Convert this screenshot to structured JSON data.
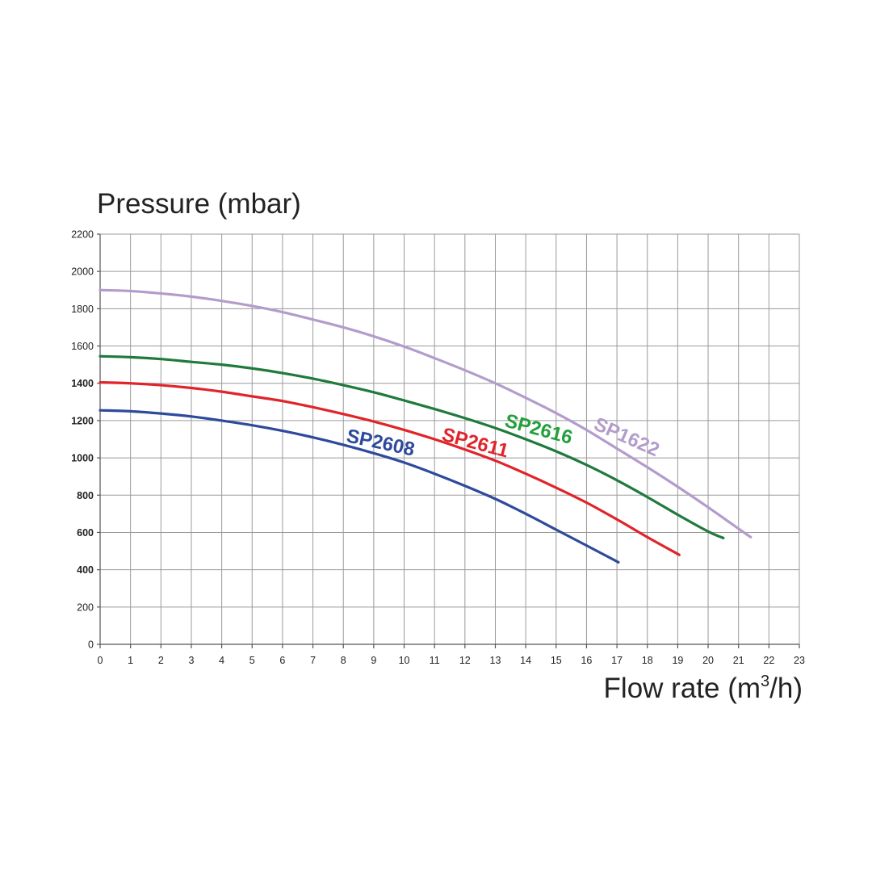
{
  "chart_data": {
    "type": "line",
    "title": "",
    "ylabel": "Pressure (mbar)",
    "xlabel_main": "Flow rate (m",
    "xlabel_sup": "3",
    "xlabel_tail": "/h)",
    "xlim": [
      0,
      23
    ],
    "ylim": [
      0,
      2200
    ],
    "x_ticks": [
      "0",
      "1",
      "2",
      "3",
      "4",
      "5",
      "6",
      "7",
      "8",
      "9",
      "10",
      "11",
      "12",
      "13",
      "14",
      "15",
      "16",
      "17",
      "18",
      "19",
      "20",
      "21",
      "22",
      "23"
    ],
    "y_ticks": [
      "0",
      "200",
      "400",
      "600",
      "800",
      "1000",
      "1200",
      "1400",
      "1600",
      "1800",
      "2000",
      "2200"
    ],
    "y_ticks_bold": [
      "400",
      "600",
      "800",
      "1000",
      "1200",
      "1400"
    ],
    "grid": true,
    "series": [
      {
        "name": "SP2608",
        "color": "#2e4a9c",
        "x": [
          0,
          1,
          2,
          3,
          4,
          5,
          6,
          7,
          8,
          9,
          10,
          11,
          12,
          13,
          14,
          15,
          16,
          17.05
        ],
        "y": [
          1255,
          1250,
          1238,
          1222,
          1200,
          1175,
          1145,
          1110,
          1070,
          1025,
          975,
          915,
          850,
          780,
          700,
          615,
          530,
          440
        ]
      },
      {
        "name": "SP2611",
        "color": "#e0242a",
        "x": [
          0,
          1,
          2,
          3,
          4,
          5,
          6,
          7,
          8,
          9,
          10,
          11,
          12,
          13,
          14,
          15,
          16,
          17,
          18,
          19.05
        ],
        "y": [
          1405,
          1400,
          1390,
          1375,
          1355,
          1330,
          1305,
          1272,
          1235,
          1195,
          1150,
          1100,
          1045,
          985,
          915,
          840,
          760,
          670,
          575,
          480
        ]
      },
      {
        "name": "SP2616",
        "color": "#1f7a3c",
        "x": [
          0,
          1,
          2,
          3,
          4,
          5,
          6,
          7,
          8,
          9,
          10,
          11,
          12,
          13,
          14,
          15,
          16,
          17,
          18,
          19,
          20,
          20.5
        ],
        "y": [
          1545,
          1540,
          1530,
          1515,
          1500,
          1480,
          1455,
          1425,
          1390,
          1352,
          1308,
          1262,
          1213,
          1160,
          1100,
          1035,
          962,
          880,
          790,
          695,
          605,
          570
        ]
      },
      {
        "name": "SP1622",
        "color": "#b39ccb",
        "x": [
          0,
          1,
          2,
          3,
          4,
          5,
          6,
          7,
          8,
          9,
          10,
          11,
          12,
          13,
          14,
          15,
          16,
          17,
          18,
          19,
          20,
          21,
          21.4
        ],
        "y": [
          1900,
          1895,
          1882,
          1865,
          1842,
          1815,
          1782,
          1742,
          1700,
          1652,
          1597,
          1535,
          1470,
          1400,
          1322,
          1240,
          1150,
          1050,
          950,
          845,
          735,
          620,
          575
        ]
      }
    ],
    "series_label_colors": {
      "SP2608": "#2e4a9c",
      "SP2611": "#e0242a",
      "SP2616": "#22a03c",
      "SP1622": "#b39ccb"
    }
  }
}
